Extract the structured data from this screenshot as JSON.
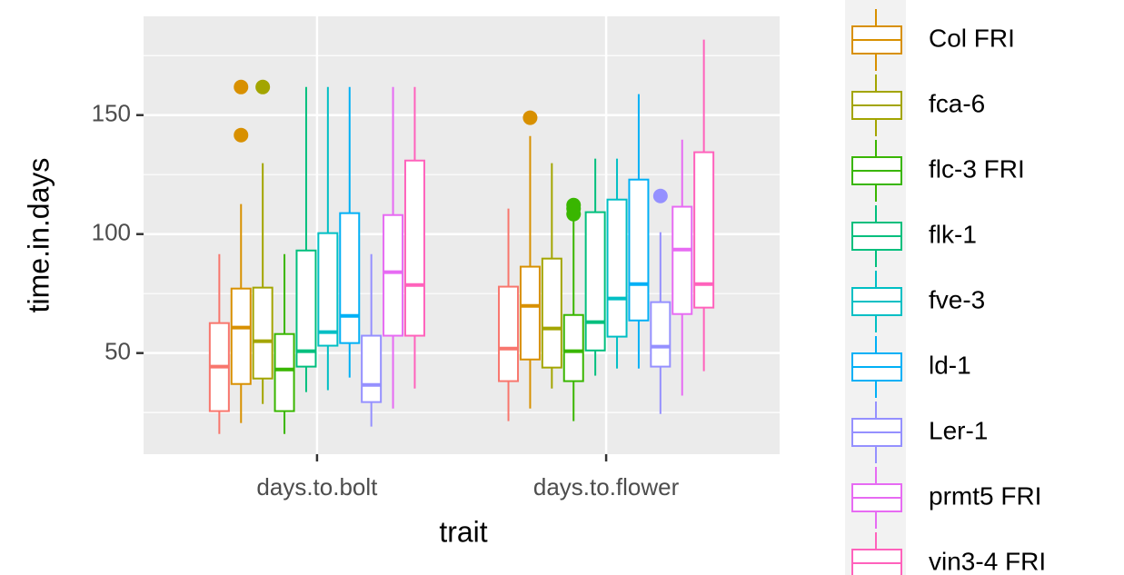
{
  "chart_data": {
    "type": "boxplot",
    "x_label": "trait",
    "y_label": "time.in.days",
    "categories": [
      "days.to.bolt",
      "days.to.flower"
    ],
    "ylim": [
      7.5,
      191.5
    ],
    "yticks": [
      50,
      100,
      150
    ],
    "minor_yticks": [
      25,
      75,
      125,
      175
    ],
    "grid": true,
    "series": [
      {
        "name": null,
        "color": "#F8766D",
        "min": [
          16.0,
          21.4
        ],
        "q1": [
          25.6,
          38.2
        ],
        "median": [
          44.3,
          51.9
        ],
        "q3": [
          62.6,
          77.9
        ],
        "max": [
          91.6,
          110.7
        ],
        "outliers": [
          [],
          []
        ]
      },
      {
        "name": "Col FRI",
        "color": "#D89000",
        "min": [
          20.6,
          26.7
        ],
        "q1": [
          37.0,
          47.3
        ],
        "median": [
          60.7,
          69.8
        ],
        "q3": [
          77.1,
          86.3
        ],
        "max": [
          112.6,
          141.2
        ],
        "outliers": [
          [
            161.8,
            141.6
          ],
          [
            148.9
          ]
        ]
      },
      {
        "name": "fca-6",
        "color": "#A3A500",
        "min": [
          28.6,
          35.1
        ],
        "q1": [
          39.3,
          43.9
        ],
        "median": [
          55.0,
          60.3
        ],
        "q3": [
          77.5,
          89.7
        ],
        "max": [
          129.8,
          129.8
        ],
        "outliers": [
          [
            161.8
          ],
          []
        ]
      },
      {
        "name": "flc-3 FRI",
        "color": "#39B600",
        "min": [
          16.0,
          21.4
        ],
        "q1": [
          25.6,
          38.2
        ],
        "median": [
          43.1,
          50.8
        ],
        "q3": [
          58.0,
          66.0
        ],
        "max": [
          91.6,
          106.9
        ],
        "outliers": [
          [],
          [
            112.2,
            110.7,
            108.4
          ]
        ]
      },
      {
        "name": "flk-1",
        "color": "#00BF7D",
        "min": [
          33.6,
          40.5
        ],
        "q1": [
          44.3,
          51.1
        ],
        "median": [
          50.8,
          63.0
        ],
        "q3": [
          93.1,
          109.2
        ],
        "max": [
          161.8,
          131.7
        ],
        "outliers": [
          [],
          []
        ]
      },
      {
        "name": "fve-3",
        "color": "#00BFC4",
        "min": [
          34.4,
          43.5
        ],
        "q1": [
          53.1,
          56.9
        ],
        "median": [
          58.8,
          72.9
        ],
        "q3": [
          100.4,
          114.5
        ],
        "max": [
          161.8,
          131.7
        ],
        "outliers": [
          [],
          []
        ]
      },
      {
        "name": "ld-1",
        "color": "#00B0F6",
        "min": [
          39.7,
          43.5
        ],
        "q1": [
          54.2,
          63.7
        ],
        "median": [
          65.6,
          79.0
        ],
        "q3": [
          108.8,
          122.9
        ],
        "max": [
          161.8,
          158.8
        ],
        "outliers": [
          [],
          []
        ]
      },
      {
        "name": "Ler-1",
        "color": "#9590FF",
        "min": [
          19.1,
          24.4
        ],
        "q1": [
          29.4,
          44.3
        ],
        "median": [
          36.6,
          52.7
        ],
        "q3": [
          57.3,
          71.4
        ],
        "max": [
          91.6,
          100.8
        ],
        "outliers": [
          [],
          [
            116.0
          ]
        ]
      },
      {
        "name": "prmt5 FRI",
        "color": "#E76BF3",
        "min": [
          26.7,
          32.1
        ],
        "q1": [
          57.3,
          66.4
        ],
        "median": [
          84.0,
          93.5
        ],
        "q3": [
          108.0,
          111.5
        ],
        "max": [
          161.8,
          139.7
        ],
        "outliers": [
          [],
          []
        ]
      },
      {
        "name": "vin3-4 FRI",
        "color": "#FF62BC",
        "min": [
          35.1,
          42.4
        ],
        "q1": [
          57.3,
          69.1
        ],
        "median": [
          78.6,
          79.0
        ],
        "q3": [
          130.9,
          134.4
        ],
        "max": [
          161.8,
          181.7
        ],
        "outliers": [
          [],
          []
        ]
      }
    ]
  }
}
